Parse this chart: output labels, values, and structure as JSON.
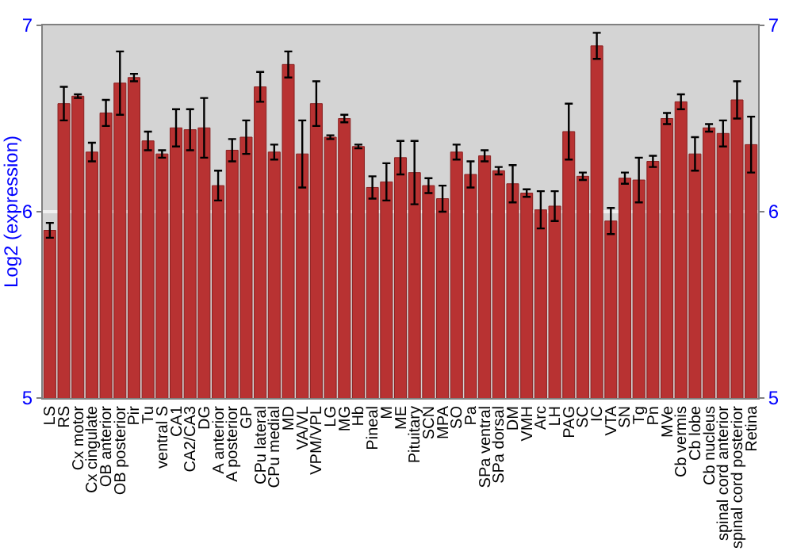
{
  "chart_data": {
    "type": "bar",
    "ylabel": "Log2 (expression)",
    "categories": [
      "LS",
      "RS",
      "Cx motor",
      "Cx cingulate",
      "OB anterior",
      "OB posterior",
      "Pir",
      "Tu",
      "ventral S",
      "CA1",
      "CA2/CA3",
      "DG",
      "A anterior",
      "A posterior",
      "GP",
      "CPu lateral",
      "CPu medial",
      "MD",
      "VA/VL",
      "VPM/VPL",
      "LG",
      "MG",
      "Hb",
      "Pineal",
      "M",
      "ME",
      "Pituitary",
      "SCN",
      "MPA",
      "SO",
      "Pa",
      "SPa ventral",
      "SPa dorsal",
      "DM",
      "VMH",
      "Arc",
      "LH",
      "PAG",
      "SC",
      "IC",
      "VTA",
      "SN",
      "Tg",
      "Pn",
      "MVe",
      "Cb vermis",
      "Cb lobe",
      "Cb nucleus",
      "spinal cord anterior",
      "spinal cord posterior",
      "Retina"
    ],
    "values": [
      5.9,
      6.58,
      6.62,
      6.32,
      6.53,
      6.69,
      6.72,
      6.38,
      6.31,
      6.45,
      6.44,
      6.45,
      6.14,
      6.33,
      6.4,
      6.67,
      6.32,
      6.79,
      6.31,
      6.58,
      6.4,
      6.5,
      6.35,
      6.13,
      6.16,
      6.29,
      6.21,
      6.14,
      6.07,
      6.32,
      6.2,
      6.3,
      6.22,
      6.15,
      6.1,
      6.01,
      6.03,
      6.43,
      6.19,
      6.89,
      5.95,
      6.18,
      6.17,
      6.27,
      6.5,
      6.59,
      6.31,
      6.45,
      6.42,
      6.6,
      6.36
    ],
    "errors": [
      0.04,
      0.09,
      0.01,
      0.05,
      0.07,
      0.17,
      0.02,
      0.05,
      0.02,
      0.1,
      0.11,
      0.16,
      0.08,
      0.06,
      0.09,
      0.08,
      0.04,
      0.07,
      0.18,
      0.12,
      0.01,
      0.02,
      0.01,
      0.06,
      0.1,
      0.09,
      0.17,
      0.04,
      0.07,
      0.04,
      0.07,
      0.03,
      0.02,
      0.1,
      0.02,
      0.1,
      0.08,
      0.15,
      0.02,
      0.07,
      0.07,
      0.03,
      0.12,
      0.03,
      0.03,
      0.04,
      0.09,
      0.02,
      0.07,
      0.1,
      0.15
    ],
    "color": "#b83232",
    "ylim": [
      5,
      7
    ],
    "yticks": [
      5,
      6,
      7
    ],
    "y2lim": [
      5,
      7
    ],
    "y2ticks": [
      5,
      6,
      7
    ],
    "grid": "y"
  }
}
